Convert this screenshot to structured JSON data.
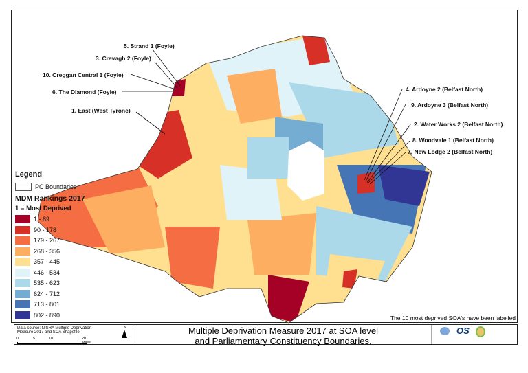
{
  "legend": {
    "title": "Legend",
    "pc_boundaries": "PC Boundaries",
    "rankings_title": "MDM Rankings 2017",
    "subtitle": "1 = Most Deprived",
    "classes": [
      {
        "label": "1 - 89",
        "color": "#a50026"
      },
      {
        "label": "90 - 178",
        "color": "#d73027"
      },
      {
        "label": "179 - 267",
        "color": "#f46d43"
      },
      {
        "label": "268 - 356",
        "color": "#fdae61"
      },
      {
        "label": "357 - 445",
        "color": "#fee090"
      },
      {
        "label": "446 - 534",
        "color": "#e0f3f8"
      },
      {
        "label": "535 - 623",
        "color": "#abd9e9"
      },
      {
        "label": "624 - 712",
        "color": "#74add1"
      },
      {
        "label": "713 - 801",
        "color": "#4575b4"
      },
      {
        "label": "802 - 890",
        "color": "#313695"
      }
    ]
  },
  "labels": [
    "5. Strand 1 (Foyle)",
    "3. Crevagh 2 (Foyle)",
    "10. Creggan Central 1 (Foyle)",
    "6. The Diamond (Foyle)",
    "1. East (West Tyrone)",
    "4. Ardoyne 2 (Belfast North)",
    "9. Ardoyne 3 (Belfast North)",
    "2. Water Works 2 (Belfast North)",
    "8. Woodvale 1 (Belfast North)",
    "7. New Lodge 2 (Belfast North)"
  ],
  "note": "The 10 most deprived SOA's have been labelled",
  "footer": {
    "source": "Data source: NISRA Multiple Deprivation Measure 2017 and SOA Shapefile.",
    "north": "N",
    "scale": [
      "0",
      "5",
      "10",
      "20 Miles"
    ],
    "title_line1": "Multiple Deprivation Measure 2017 at SOA level",
    "title_line2": "and Parliamentary Constituency Boundaries.",
    "logos": [
      "Northern Ireland Assembly",
      "OS",
      "Land & Property Services"
    ]
  }
}
